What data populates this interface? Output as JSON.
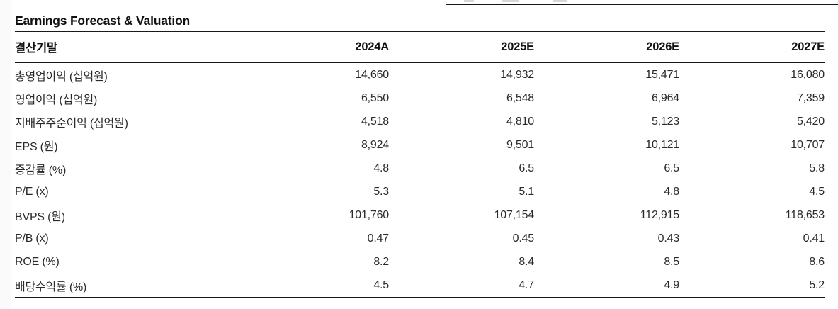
{
  "page": {
    "section_title": "Earnings Forecast & Valuation"
  },
  "colors": {
    "text": "#222222",
    "rule": "#191919",
    "page_edge": "#ececec"
  },
  "table": {
    "header": {
      "label": "결산기말",
      "columns": [
        "2024A",
        "2025E",
        "2026E",
        "2027E"
      ]
    },
    "rows": [
      {
        "label": "총영업이익 (십억원)",
        "values": [
          "14,660",
          "14,932",
          "15,471",
          "16,080"
        ]
      },
      {
        "label": "영업이익 (십억원)",
        "values": [
          "6,550",
          "6,548",
          "6,964",
          "7,359"
        ]
      },
      {
        "label": "지배주주순이익 (십억원)",
        "values": [
          "4,518",
          "4,810",
          "5,123",
          "5,420"
        ]
      },
      {
        "label": "EPS (원)",
        "values": [
          "8,924",
          "9,501",
          "10,121",
          "10,707"
        ]
      },
      {
        "label": "증감률 (%)",
        "values": [
          "4.8",
          "6.5",
          "6.5",
          "5.8"
        ]
      },
      {
        "label": "P/E (x)",
        "values": [
          "5.3",
          "5.1",
          "4.8",
          "4.5"
        ]
      },
      {
        "label": "BVPS (원)",
        "values": [
          "101,760",
          "107,154",
          "112,915",
          "118,653"
        ]
      },
      {
        "label": "P/B (x)",
        "values": [
          "0.47",
          "0.45",
          "0.43",
          "0.41"
        ]
      },
      {
        "label": "ROE (%)",
        "values": [
          "8.2",
          "8.4",
          "8.5",
          "8.6"
        ]
      },
      {
        "label": "배당수익률 (%)",
        "values": [
          "4.5",
          "4.7",
          "4.9",
          "5.2"
        ]
      }
    ]
  }
}
